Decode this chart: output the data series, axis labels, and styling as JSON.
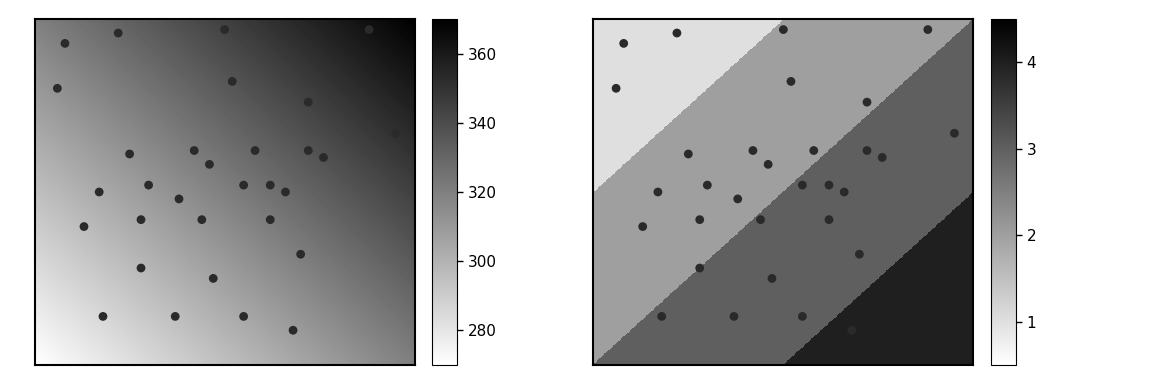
{
  "points_x": [
    0.08,
    0.22,
    0.5,
    0.88,
    0.06,
    0.52,
    0.72,
    0.95,
    0.25,
    0.42,
    0.46,
    0.58,
    0.72,
    0.76,
    0.17,
    0.3,
    0.38,
    0.55,
    0.62,
    0.66,
    0.13,
    0.28,
    0.44,
    0.62,
    0.28,
    0.47,
    0.7,
    0.18,
    0.37,
    0.55,
    0.68
  ],
  "points_y": [
    0.93,
    0.96,
    0.97,
    0.97,
    0.8,
    0.82,
    0.76,
    0.67,
    0.61,
    0.62,
    0.58,
    0.62,
    0.62,
    0.6,
    0.5,
    0.52,
    0.48,
    0.52,
    0.52,
    0.5,
    0.4,
    0.42,
    0.42,
    0.42,
    0.28,
    0.25,
    0.32,
    0.14,
    0.14,
    0.14,
    0.1
  ],
  "colorbar1_ticks": [
    280,
    300,
    320,
    340,
    360
  ],
  "colorbar2_ticks": [
    1,
    2,
    3,
    4
  ],
  "elev_min": 270,
  "elev_max": 370,
  "tess_min": 0.5,
  "tess_max": 4.5,
  "background": "#ffffff",
  "cb1_label_size": 11,
  "cb2_label_size": 11
}
